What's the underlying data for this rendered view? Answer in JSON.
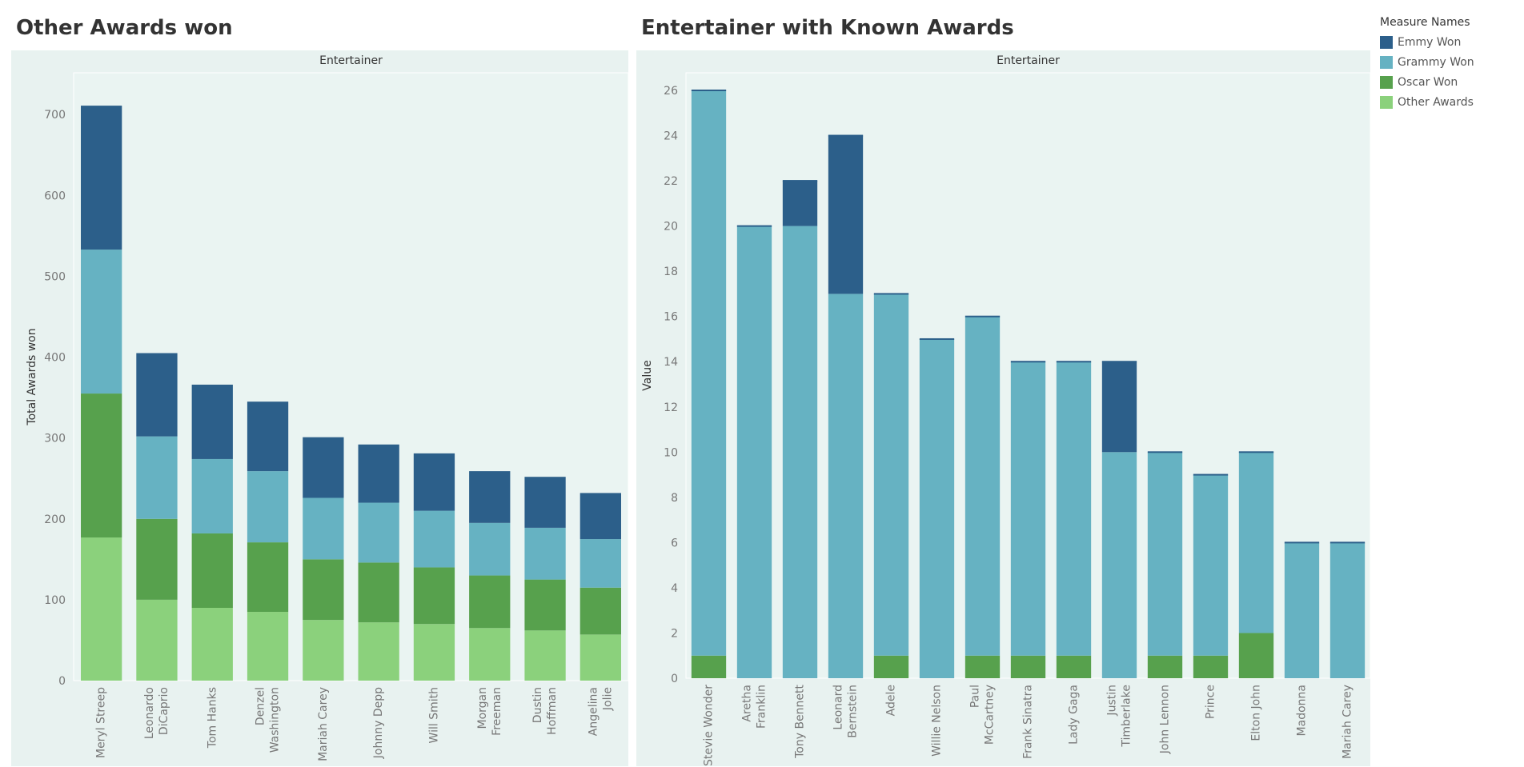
{
  "legend": {
    "title": "Measure Names",
    "items": [
      {
        "label": "Emmy Won",
        "color": "#2c5f8a"
      },
      {
        "label": "Grammy Won",
        "color": "#66b2c2"
      },
      {
        "label": "Oscar Won",
        "color": "#57a14d"
      },
      {
        "label": "Other Awards",
        "color": "#8bd17c"
      }
    ]
  },
  "chart_data": [
    {
      "type": "bar",
      "stacked": true,
      "title": "Other Awards won",
      "xlabel": "Entertainer",
      "ylabel": "Total Awards won",
      "ylim": [
        0,
        720
      ],
      "yticks": [
        0,
        100,
        200,
        300,
        400,
        500,
        600,
        700
      ],
      "grid": false,
      "categories": [
        "Meryl Streep",
        "Leonardo DiCaprio",
        "Tom Hanks",
        "Denzel Washington",
        "Mariah Carey",
        "Johnny Depp",
        "Will Smith",
        "Morgan Freeman",
        "Dustin Hoffman",
        "Angelina Jolie"
      ],
      "series": [
        {
          "name": "Other Awards",
          "values": [
            177,
            100,
            90,
            85,
            75,
            72,
            70,
            65,
            62,
            57
          ]
        },
        {
          "name": "Oscar Won",
          "values": [
            178,
            100,
            92,
            86,
            75,
            74,
            70,
            65,
            63,
            58
          ]
        },
        {
          "name": "Grammy Won",
          "values": [
            178,
            102,
            92,
            88,
            76,
            74,
            70,
            65,
            64,
            60
          ]
        },
        {
          "name": "Emmy Won",
          "values": [
            178,
            103,
            92,
            86,
            75,
            72,
            71,
            64,
            63,
            57
          ]
        }
      ]
    },
    {
      "type": "bar",
      "stacked": true,
      "title": "Entertainer with Known Awards",
      "xlabel": "Entertainer",
      "ylabel": "Value",
      "ylim": [
        0,
        26
      ],
      "yticks": [
        0,
        2,
        4,
        6,
        8,
        10,
        12,
        14,
        16,
        18,
        20,
        22,
        24,
        26
      ],
      "grid": false,
      "categories": [
        "Stevie Wonder",
        "Aretha Franklin",
        "Tony Bennett",
        "Leonard Bernstein",
        "Adele",
        "Willie Nelson",
        "Paul McCartney",
        "Frank Sinatra",
        "Lady Gaga",
        "Justin Timberlake",
        "John Lennon",
        "Prince",
        "Elton John",
        "Madonna",
        "Mariah Carey"
      ],
      "series": [
        {
          "name": "Oscar Won",
          "values": [
            1,
            0,
            0,
            0,
            1,
            0,
            1,
            1,
            1,
            0,
            1,
            1,
            2,
            0,
            0
          ]
        },
        {
          "name": "Grammy Won",
          "values": [
            25,
            20,
            20,
            17,
            16,
            15,
            15,
            13,
            13,
            10,
            9,
            8,
            8,
            6,
            6
          ]
        },
        {
          "name": "Emmy Won",
          "values": [
            0,
            0,
            2,
            7,
            0,
            0,
            0,
            0,
            0,
            4,
            0,
            0,
            0,
            0,
            0
          ]
        }
      ]
    }
  ]
}
